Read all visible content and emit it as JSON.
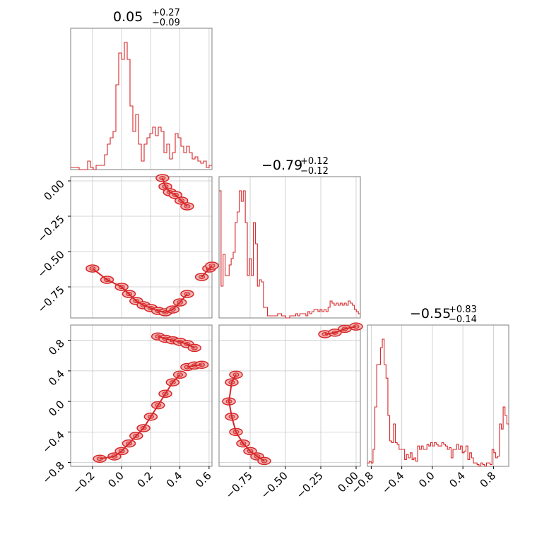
{
  "chart_data": {
    "type": "corner",
    "color": "#d62728",
    "fill_color": "#f4b6b6",
    "grid": true,
    "params": [
      {
        "title": "0.05",
        "plus": "+0.27",
        "minus": "−0.09",
        "range": [
          -0.35,
          0.62
        ]
      },
      {
        "title": "−0.79",
        "plus": "+0.12",
        "minus": "−0.12",
        "range": [
          -0.97,
          0.03
        ]
      },
      {
        "title": "−0.55",
        "plus": "+0.83",
        "minus": "−0.14",
        "range": [
          -0.85,
          1.0
        ]
      }
    ],
    "ticks": [
      {
        "values": [
          -0.2,
          0.0,
          0.2,
          0.4,
          0.6
        ],
        "labels": [
          "−0.2",
          "0.0",
          "0.2",
          "0.4",
          "0.6"
        ]
      },
      {
        "values": [
          -0.75,
          -0.5,
          -0.25,
          0.0
        ],
        "labels": [
          "−0.75",
          "−0.50",
          "−0.25",
          "0.00"
        ]
      },
      {
        "values": [
          -0.8,
          -0.4,
          0.0,
          0.4,
          0.8
        ],
        "labels": [
          "−0.8",
          "−0.4",
          "0.0",
          "0.4",
          "0.8"
        ]
      }
    ],
    "histograms": [
      {
        "param": 0,
        "edges_range": [
          -0.35,
          0.62
        ],
        "counts": [
          1,
          1,
          1,
          0,
          0,
          0,
          4,
          1,
          0,
          2,
          2,
          2,
          7,
          12,
          15,
          18,
          40,
          55,
          52,
          60,
          52,
          30,
          18,
          26,
          12,
          4,
          12,
          15,
          17,
          20,
          16,
          20,
          18,
          8,
          12,
          5,
          8,
          17,
          15,
          11,
          8,
          11,
          8,
          5,
          6,
          4,
          3,
          4,
          1,
          2
        ]
      },
      {
        "param": 1,
        "edges_range": [
          -0.97,
          0.03
        ],
        "counts": [
          60,
          15,
          30,
          20,
          20,
          25,
          28,
          31,
          45,
          50,
          60,
          55,
          60,
          45,
          20,
          28,
          20,
          45,
          35,
          15,
          18,
          17,
          5,
          5,
          1,
          1,
          1,
          1,
          1,
          2,
          2,
          1,
          1,
          0,
          0,
          1,
          1,
          1,
          2,
          1,
          2,
          2,
          2,
          1,
          3,
          2,
          3,
          4,
          4,
          3,
          4,
          3,
          4,
          3,
          5,
          8,
          7,
          6,
          7,
          6,
          7,
          6,
          7,
          6,
          8,
          7,
          6,
          4,
          3,
          2
        ]
      },
      {
        "param": 2,
        "edges_range": [
          -0.85,
          1.0
        ],
        "counts": [
          2,
          3,
          2,
          10,
          35,
          60,
          60,
          70,
          75,
          60,
          52,
          30,
          15,
          14,
          25,
          14,
          13,
          10,
          10,
          10,
          4,
          7,
          5,
          8,
          4,
          5,
          3,
          12,
          10,
          12,
          10,
          10,
          13,
          12,
          14,
          12,
          14,
          13,
          12,
          12,
          14,
          13,
          12,
          10,
          11,
          5,
          10,
          10,
          13,
          10,
          12,
          8,
          9,
          12,
          4,
          8,
          5,
          2,
          2,
          1,
          0,
          2,
          1,
          0,
          2,
          2,
          1,
          10,
          8,
          5,
          6,
          25,
          22,
          35,
          30,
          25
        ]
      }
    ],
    "contours": [
      {
        "xparam": 0,
        "yparam": 1,
        "clusters": [
          {
            "x": [
              -0.2,
              -0.1,
              0.0,
              0.05,
              0.1,
              0.15,
              0.2,
              0.25,
              0.3,
              0.35,
              0.4,
              0.45
            ],
            "y": [
              -0.62,
              -0.7,
              -0.75,
              -0.8,
              -0.85,
              -0.88,
              -0.9,
              -0.92,
              -0.93,
              -0.91,
              -0.86,
              -0.8
            ]
          },
          {
            "x": [
              0.28,
              0.3,
              0.33,
              0.37,
              0.41,
              0.45
            ],
            "y": [
              0.02,
              -0.04,
              -0.08,
              -0.1,
              -0.14,
              -0.18
            ]
          },
          {
            "x": [
              0.55,
              0.6,
              0.62
            ],
            "y": [
              -0.68,
              -0.62,
              -0.6
            ]
          }
        ]
      },
      {
        "xparam": 0,
        "yparam": 2,
        "clusters": [
          {
            "x": [
              -0.15,
              -0.05,
              0.0,
              0.05,
              0.1,
              0.15,
              0.2,
              0.25,
              0.3,
              0.35,
              0.4
            ],
            "y": [
              -0.75,
              -0.72,
              -0.65,
              -0.55,
              -0.45,
              -0.35,
              -0.2,
              -0.05,
              0.1,
              0.25,
              0.35
            ]
          },
          {
            "x": [
              0.25,
              0.3,
              0.35,
              0.4,
              0.45,
              0.5
            ],
            "y": [
              0.85,
              0.82,
              0.8,
              0.78,
              0.75,
              0.7
            ]
          },
          {
            "x": [
              0.45,
              0.5,
              0.55
            ],
            "y": [
              0.45,
              0.47,
              0.48
            ]
          }
        ]
      },
      {
        "xparam": 1,
        "yparam": 2,
        "clusters": [
          {
            "x": [
              -0.85,
              -0.88,
              -0.9,
              -0.88,
              -0.85,
              -0.8,
              -0.75,
              -0.7,
              -0.65
            ],
            "y": [
              0.35,
              0.25,
              0.0,
              -0.2,
              -0.4,
              -0.55,
              -0.65,
              -0.72,
              -0.78
            ]
          },
          {
            "x": [
              -0.22,
              -0.15,
              -0.08,
              0.0
            ],
            "y": [
              0.88,
              0.9,
              0.95,
              0.98
            ]
          }
        ]
      }
    ]
  }
}
